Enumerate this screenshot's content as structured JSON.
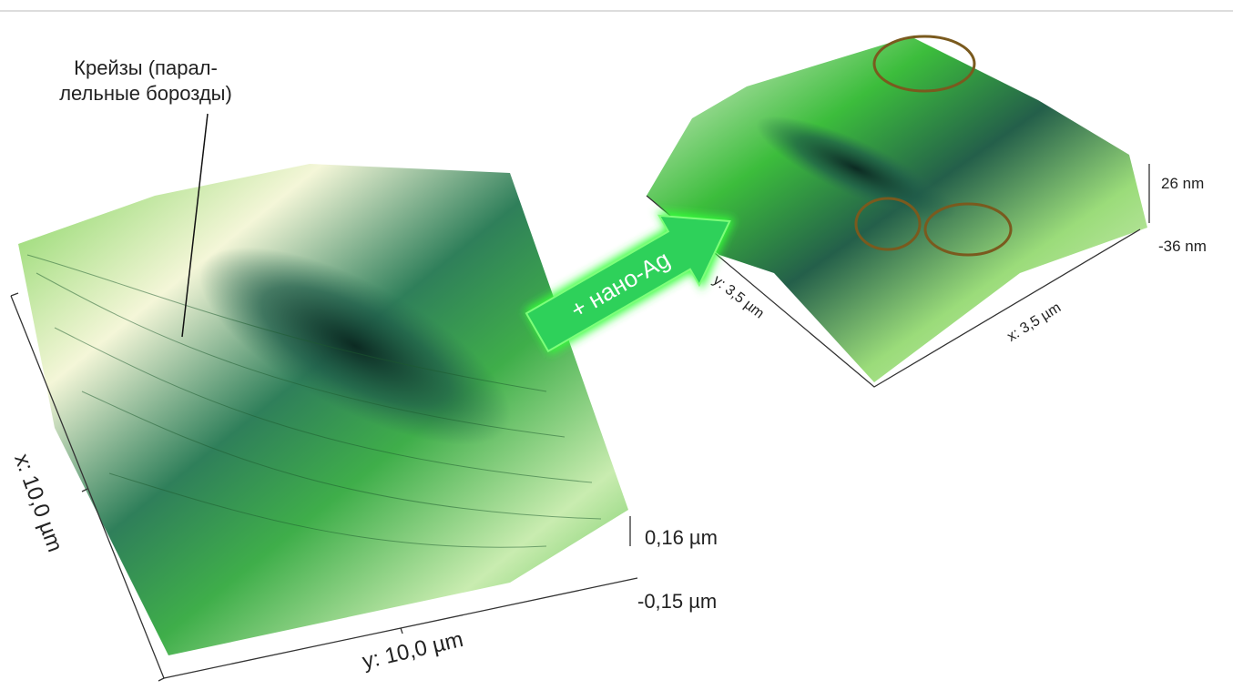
{
  "annotation": {
    "lines": [
      "Крейзы (парал-",
      "лельные борозды)"
    ]
  },
  "arrow": {
    "label": "+ нано-Ag"
  },
  "left_image": {
    "x_axis": "x: 10,0 µm",
    "y_axis": "y: 10,0 µm",
    "z_max": "0,16 µm",
    "z_min": "-0,15 µm"
  },
  "right_image": {
    "y_axis": "y: 3,5 µm",
    "x_axis": "x: 3,5 µm",
    "z_max": "26 nm",
    "z_min": "-36 nm"
  }
}
